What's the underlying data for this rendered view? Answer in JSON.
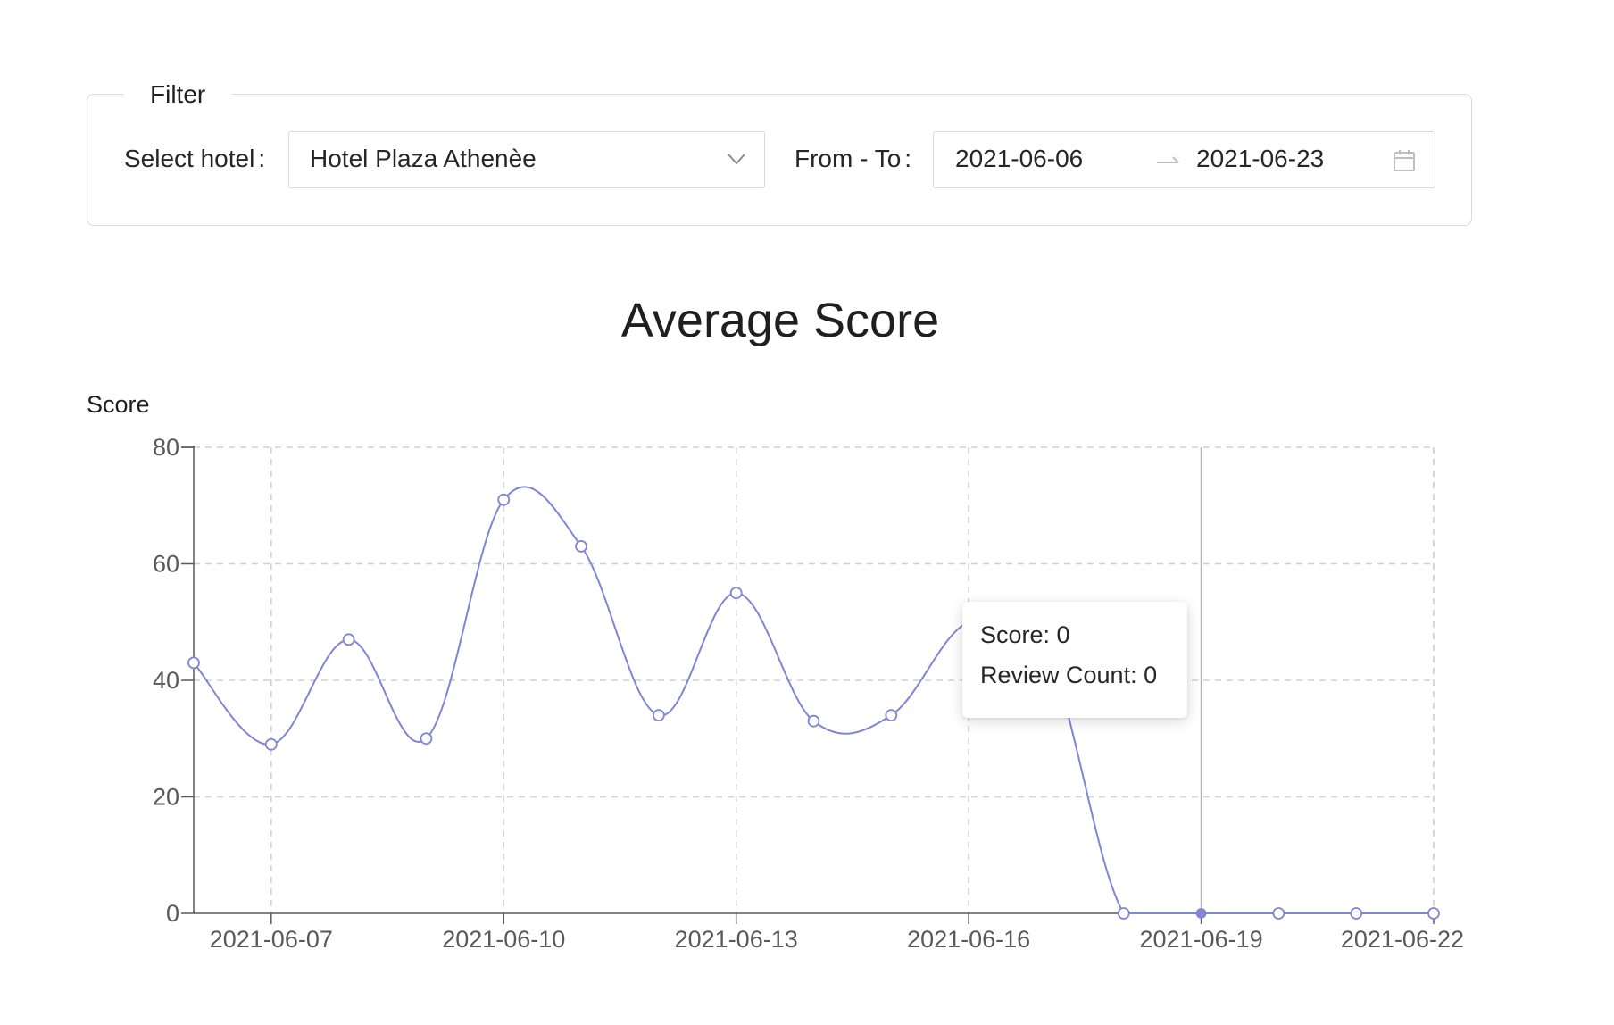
{
  "filter": {
    "legend": "Filter",
    "hotel_label": "Select hotel",
    "hotel_value": "Hotel Plaza Athenèe",
    "range_label": "From - To",
    "date_from": "2021-06-06",
    "date_to": "2021-06-23"
  },
  "tooltip": {
    "lines": [
      "Score: 0",
      "Review Count: 0"
    ]
  },
  "colors": {
    "line": "#8085d4",
    "grid": "#d0d0d0",
    "axis": "#595959",
    "crosshair": "#b0b0b0"
  },
  "chart_data": {
    "type": "line",
    "title": "Average Score",
    "ylabel": "Score",
    "xlabel": "",
    "ylim": [
      0,
      80
    ],
    "y_ticks": [
      0,
      20,
      40,
      60,
      80
    ],
    "x_ticks": [
      "2021-06-07",
      "2021-06-10",
      "2021-06-13",
      "2021-06-16",
      "2021-06-19",
      "2021-06-22"
    ],
    "grid": true,
    "smooth": true,
    "highlighted_x": "2021-06-19",
    "series": [
      {
        "x": [
          "2021-06-06",
          "2021-06-07",
          "2021-06-08",
          "2021-06-09",
          "2021-06-10",
          "2021-06-11",
          "2021-06-12",
          "2021-06-13",
          "2021-06-14",
          "2021-06-15",
          "2021-06-16",
          "2021-06-17",
          "2021-06-18",
          "2021-06-19",
          "2021-06-20",
          "2021-06-21",
          "2021-06-22"
        ],
        "values": [
          43,
          29,
          47,
          30,
          71,
          63,
          34,
          55,
          33,
          34,
          50,
          45,
          0,
          0,
          0,
          0,
          0
        ]
      }
    ]
  }
}
